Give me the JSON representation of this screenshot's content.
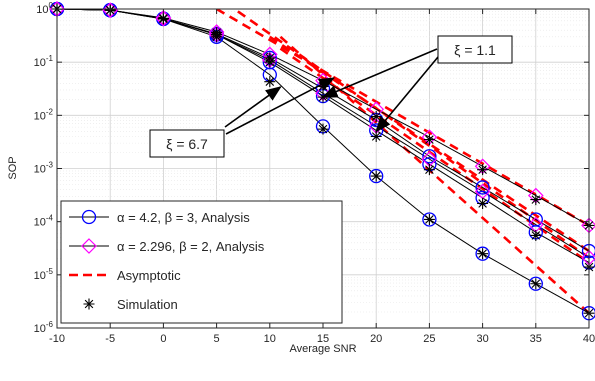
{
  "chart_data": {
    "type": "line",
    "xlabel": "Average SNR",
    "ylabel": "SOP",
    "xlim": [
      -10,
      40
    ],
    "ylim": [
      1e-06,
      1
    ],
    "yscale": "log",
    "grid": true,
    "legend_position": "bottom-left",
    "x_ticks": [
      -10,
      -5,
      0,
      5,
      10,
      15,
      20,
      25,
      30,
      35,
      40
    ],
    "x_tick_labels": [
      "-10",
      "-5",
      "0",
      "5",
      "10",
      "15",
      "20",
      "25",
      "30",
      "35",
      "40"
    ],
    "y_ticks": [
      1,
      0.1,
      0.01,
      0.001,
      0.0001,
      1e-05,
      1e-06
    ],
    "y_tick_labels": [
      {
        "base": "10",
        "exp": "0"
      },
      {
        "base": "10",
        "exp": "-1"
      },
      {
        "base": "10",
        "exp": "-2"
      },
      {
        "base": "10",
        "exp": "-3"
      },
      {
        "base": "10",
        "exp": "-4"
      },
      {
        "base": "10",
        "exp": "-5"
      },
      {
        "base": "10",
        "exp": "-6"
      }
    ],
    "legend": [
      {
        "key": "a1",
        "label": "α = 4.2, β = 3, Analysis",
        "style": "line-circle",
        "color": "#0000ff"
      },
      {
        "key": "a2",
        "label": "α = 2.296, β = 2, Analysis",
        "style": "line-diamond",
        "color": "#ff00ff"
      },
      {
        "key": "asym",
        "label": "Asymptotic",
        "style": "dashed",
        "color": "#ff0000"
      },
      {
        "key": "sim",
        "label": "Simulation",
        "style": "asterisk",
        "color": "#000000"
      }
    ],
    "x": [
      -10,
      -5,
      0,
      5,
      10,
      15,
      20,
      25,
      30,
      35,
      40
    ],
    "series": [
      {
        "group": "a1",
        "values": [
          1.0,
          0.95,
          0.65,
          0.3,
          0.058,
          0.0062,
          0.00072,
          0.00011,
          2.5e-05,
          6.8e-06,
          1.9e-06
        ]
      },
      {
        "group": "a1",
        "values": [
          1.0,
          0.95,
          0.65,
          0.33,
          0.1,
          0.023,
          0.0052,
          0.0012,
          0.00028,
          6.3e-05,
          1.7e-05
        ]
      },
      {
        "group": "a1",
        "values": [
          1.0,
          0.95,
          0.66,
          0.34,
          0.12,
          0.032,
          0.0082,
          0.0017,
          0.00044,
          0.00011,
          2.8e-05
        ]
      },
      {
        "group": "a2",
        "values": [
          1.0,
          0.95,
          0.68,
          0.37,
          0.14,
          0.045,
          0.013,
          0.0039,
          0.0011,
          0.00031,
          8.5e-05
        ]
      },
      {
        "group": "a2",
        "values": [
          1.0,
          0.95,
          0.66,
          0.33,
          0.11,
          0.026,
          0.0063,
          0.0015,
          0.00037,
          8.8e-05,
          2.1e-05
        ]
      },
      {
        "group": "sim",
        "values": [
          1.0,
          0.95,
          0.65,
          0.3,
          0.043,
          0.0055,
          0.00072,
          0.00011,
          2.5e-05,
          6.8e-06,
          1.9e-06
        ]
      },
      {
        "group": "sim",
        "values": [
          1.0,
          0.95,
          0.66,
          0.33,
          0.1,
          0.022,
          0.004,
          0.00095,
          0.00022,
          5.5e-05,
          1.4e-05
        ]
      },
      {
        "group": "sim",
        "values": [
          1.0,
          0.95,
          0.67,
          0.36,
          0.12,
          0.035,
          0.0095,
          0.0035,
          0.00095,
          0.00026,
          8.5e-05
        ]
      }
    ],
    "asymptotes": [
      {
        "x": [
          11,
          40
        ],
        "y": [
          0.3,
          1.9e-06
        ]
      },
      {
        "x": [
          11,
          40
        ],
        "y": [
          0.18,
          1.7e-05
        ]
      },
      {
        "x": [
          10,
          40
        ],
        "y": [
          0.3,
          2.8e-05
        ]
      },
      {
        "x": [
          5,
          40
        ],
        "y": [
          1.0,
          8.5e-05
        ]
      },
      {
        "x": [
          7,
          40
        ],
        "y": [
          0.9,
          2.1e-05
        ]
      }
    ],
    "annotations": [
      {
        "text": "ξ = 1.1",
        "arrows_to": [
          [
            15,
            0.022
          ],
          [
            20,
            0.005
          ]
        ]
      },
      {
        "text": "ξ = 6.7",
        "arrows_to": [
          [
            11,
            0.034
          ],
          [
            16,
            0.05
          ]
        ]
      }
    ]
  }
}
